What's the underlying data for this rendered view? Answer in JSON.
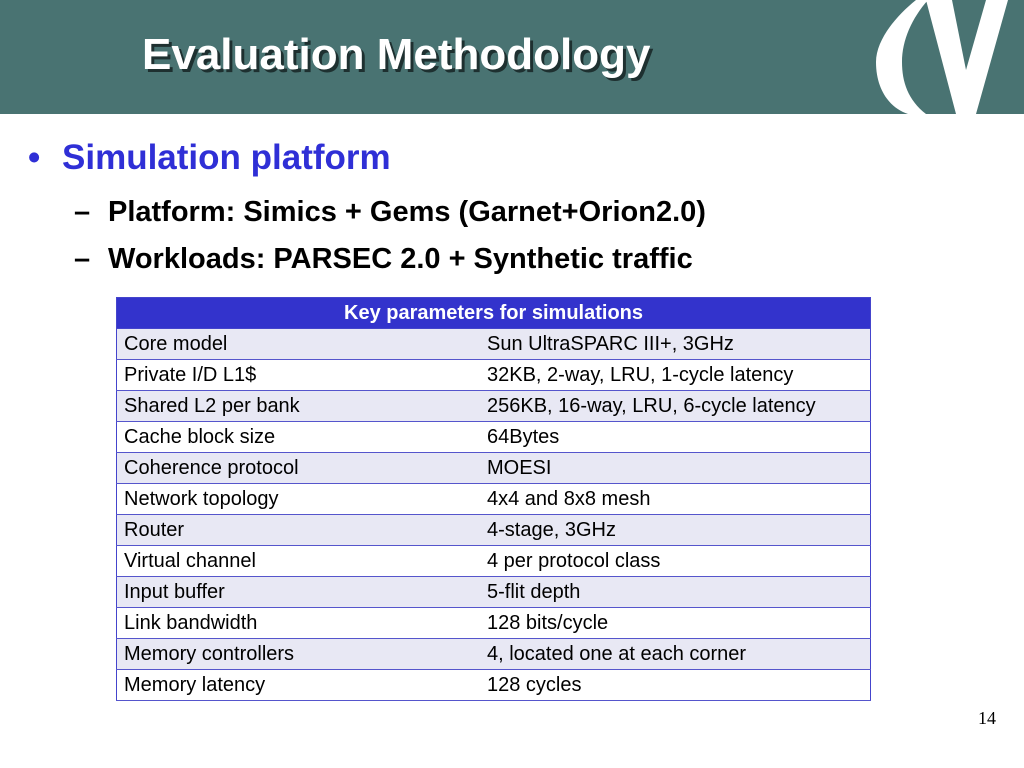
{
  "slide": {
    "title": "Evaluation Methodology",
    "page_number": "14"
  },
  "colors": {
    "header_bg": "#497372",
    "bullet_text": "#2f2fd6",
    "table_header_bg": "#3333cc",
    "table_alt_row": "#e8e8f4"
  },
  "logo": {
    "icon": "v-logo-icon"
  },
  "bullets": {
    "main": "Simulation platform",
    "bullet_glyph": "•",
    "dash_glyph": "–",
    "sub": [
      "Platform: Simics + Gems (Garnet+Orion2.0)",
      "Workloads: PARSEC 2.0 + Synthetic traffic"
    ]
  },
  "table": {
    "header": "Key parameters for simulations",
    "rows": [
      {
        "param": "Core model",
        "value": "Sun UltraSPARC III+, 3GHz"
      },
      {
        "param": "Private I/D L1$",
        "value": "32KB, 2-way, LRU, 1-cycle latency"
      },
      {
        "param": "Shared L2 per bank",
        "value": "256KB, 16-way, LRU, 6-cycle latency"
      },
      {
        "param": "Cache block size",
        "value": "64Bytes"
      },
      {
        "param": "Coherence protocol",
        "value": "MOESI"
      },
      {
        "param": "Network topology",
        "value": "4x4 and 8x8 mesh"
      },
      {
        "param": "Router",
        "value": "4-stage, 3GHz"
      },
      {
        "param": "Virtual channel",
        "value": "4 per protocol class"
      },
      {
        "param": "Input buffer",
        "value": "5-flit depth"
      },
      {
        "param": "Link bandwidth",
        "value": "128 bits/cycle"
      },
      {
        "param": "Memory controllers",
        "value": "4, located one at each corner"
      },
      {
        "param": "Memory latency",
        "value": "128 cycles"
      }
    ]
  }
}
